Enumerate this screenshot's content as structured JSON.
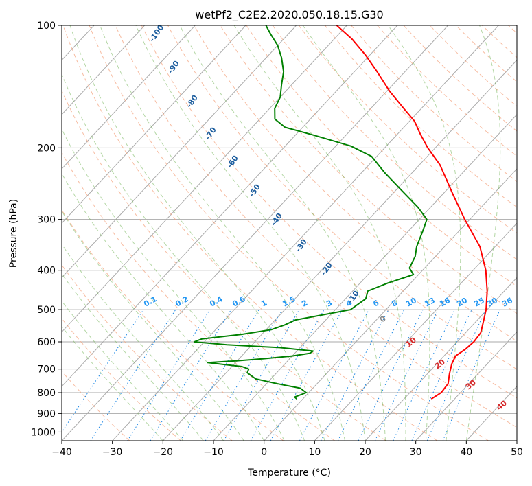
{
  "chart_data": {
    "type": "line",
    "subtype": "skew-T log-p diagram",
    "title": "wetPf2_C2E2.2020.050.18.15.G30",
    "xlabel": "Temperature (°C)",
    "ylabel": "Pressure (hPa)",
    "xlim": [
      -40,
      50
    ],
    "ylim": [
      1050,
      100
    ],
    "y_scale": "log",
    "x_ticks": [
      -40,
      -30,
      -20,
      -10,
      0,
      10,
      20,
      30,
      40,
      50
    ],
    "y_ticks": [
      100,
      200,
      300,
      400,
      500,
      600,
      700,
      800,
      900,
      1000
    ],
    "grid": true,
    "series": [
      {
        "role": "temperature",
        "color": "#ff0000",
        "points": [
          [
            829,
            25.4
          ],
          [
            800,
            26.2
          ],
          [
            760,
            25.9
          ],
          [
            720,
            24.4
          ],
          [
            680,
            23.0
          ],
          [
            650,
            22.3
          ],
          [
            625,
            23.0
          ],
          [
            600,
            23.3
          ],
          [
            570,
            23.0
          ],
          [
            540,
            21.7
          ],
          [
            500,
            19.8
          ],
          [
            450,
            16.6
          ],
          [
            400,
            12.5
          ],
          [
            350,
            7.0
          ],
          [
            300,
            -1.0
          ],
          [
            260,
            -8.0
          ],
          [
            220,
            -16.0
          ],
          [
            200,
            -21.5
          ],
          [
            185,
            -25.5
          ],
          [
            172,
            -29.0
          ],
          [
            160,
            -33.5
          ],
          [
            145,
            -39.5
          ],
          [
            130,
            -45.5
          ],
          [
            118,
            -51.0
          ],
          [
            108,
            -56.5
          ],
          [
            100,
            -62.0
          ]
        ]
      },
      {
        "role": "dewpoint",
        "color": "#008000",
        "points": [
          [
            829,
            -1.2
          ],
          [
            820,
            -2.0
          ],
          [
            800,
            -0.5
          ],
          [
            780,
            -2.5
          ],
          [
            760,
            -8.0
          ],
          [
            740,
            -13.0
          ],
          [
            715,
            -15.8
          ],
          [
            700,
            -16.2
          ],
          [
            690,
            -18.0
          ],
          [
            682,
            -22.0
          ],
          [
            675,
            -25.5
          ],
          [
            668,
            -20.0
          ],
          [
            660,
            -15.0
          ],
          [
            650,
            -10.0
          ],
          [
            640,
            -7.0
          ],
          [
            632,
            -6.8
          ],
          [
            620,
            -14.0
          ],
          [
            610,
            -25.0
          ],
          [
            600,
            -32.0
          ],
          [
            590,
            -31.0
          ],
          [
            575,
            -24.0
          ],
          [
            560,
            -19.0
          ],
          [
            545,
            -17.2
          ],
          [
            530,
            -16.0
          ],
          [
            500,
            -7.0
          ],
          [
            470,
            -6.0
          ],
          [
            450,
            -7.0
          ],
          [
            430,
            -4.5
          ],
          [
            410,
            -1.0
          ],
          [
            395,
            -3.0
          ],
          [
            370,
            -4.0
          ],
          [
            350,
            -5.5
          ],
          [
            320,
            -7.2
          ],
          [
            300,
            -8.5
          ],
          [
            280,
            -12.5
          ],
          [
            250,
            -20.0
          ],
          [
            230,
            -25.5
          ],
          [
            210,
            -31.0
          ],
          [
            198,
            -37.0
          ],
          [
            186,
            -46.5
          ],
          [
            178,
            -53.5
          ],
          [
            170,
            -57.0
          ],
          [
            160,
            -59.0
          ],
          [
            150,
            -60.0
          ],
          [
            140,
            -62.0
          ],
          [
            130,
            -64.0
          ],
          [
            120,
            -67.0
          ],
          [
            112,
            -70.0
          ],
          [
            105,
            -73.5
          ],
          [
            100,
            -76.0
          ]
        ]
      }
    ],
    "reference_lines": {
      "dry_adiabats_color": "#f4a582",
      "moist_adiabats_color": "#6ab04c",
      "mixing_ratio_color": "#1e88e5",
      "isotherm_color": "#aaaaaa",
      "label_color_dry": "#d62728",
      "label_color_moist": "#1f5f9f",
      "label_color_mixing": "#2196f3",
      "label_color_lcl": "#888888"
    },
    "annotations": {
      "dry_adiabat_labels": [
        "0",
        "10",
        "20",
        "30",
        "40"
      ],
      "moist_adiabat_labels": [
        "-100",
        "-90",
        "-80",
        "-70",
        "-60",
        "-50",
        "-40",
        "-30",
        "-20",
        "-10"
      ],
      "mixing_ratio_labels": [
        "0.1",
        "0.2",
        "0.4",
        "0.6",
        "1",
        "1.5",
        "2",
        "3",
        "4",
        "6",
        "8",
        "10",
        "13",
        "16",
        "20",
        "25",
        "30",
        "36"
      ]
    }
  }
}
